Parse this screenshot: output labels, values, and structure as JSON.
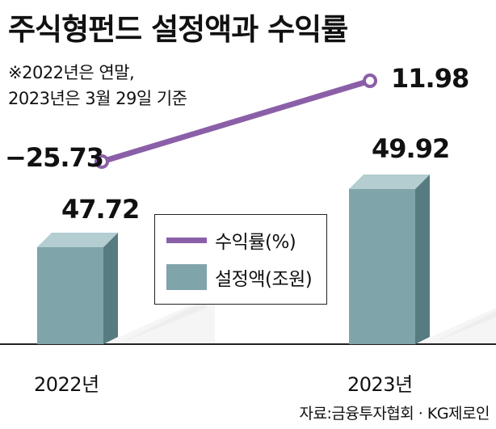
{
  "title": "주식형펀드 설정액과 수익률",
  "note_line1": "※2022년은 연말,",
  "note_line2": "2023년은 3월 29일 기준",
  "source": "자료:금융투자협회 · KG제로인",
  "colors": {
    "line": "#8b5fa8",
    "bar_front": "#7fa4aa",
    "bar_side": "#567b80",
    "bar_top": "#b3cdd1",
    "shadow": "#eeeeee"
  },
  "legend": {
    "line_label": "수익률(%)",
    "bar_label": "설정액(조원)"
  },
  "chart_data": {
    "type": "bar",
    "categories": [
      "2022년",
      "2023년"
    ],
    "series": [
      {
        "name": "설정액(조원)",
        "type": "bar",
        "values": [
          47.72,
          49.92
        ],
        "labels": [
          "47.72",
          "49.92"
        ]
      },
      {
        "name": "수익률(%)",
        "type": "line",
        "values": [
          -25.73,
          11.98
        ],
        "labels": [
          "−25.73",
          "11.98"
        ]
      }
    ],
    "legend_position": "center"
  }
}
